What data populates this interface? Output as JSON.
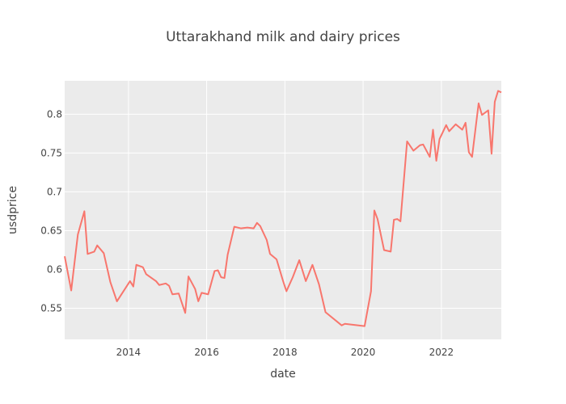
{
  "chart_data": {
    "type": "line",
    "title": "Uttarakhand milk and dairy prices",
    "xlabel": "date",
    "ylabel": "usdprice",
    "xlim": [
      "2012-05-15",
      "2023-07-15"
    ],
    "ylim": [
      0.51,
      0.843
    ],
    "x_ticks": [
      "2014-01-01",
      "2016-01-01",
      "2018-01-01",
      "2020-01-01",
      "2022-01-01"
    ],
    "x_tick_labels": [
      "2014",
      "2016",
      "2018",
      "2020",
      "2022"
    ],
    "y_ticks": [
      0.55,
      0.6,
      0.65,
      0.7,
      0.75,
      0.8
    ],
    "y_tick_labels": [
      "0.55",
      "0.6",
      "0.65",
      "0.7",
      "0.75",
      "0.8"
    ],
    "grid": true,
    "legend": "none",
    "colors": {
      "series": "#f8766d",
      "plot_bg": "#ebebeb",
      "grid": "#ffffff"
    },
    "series": [
      {
        "x": [
          "2012-05-15",
          "2012-07-15",
          "2012-09-15",
          "2012-11-15",
          "2012-12-15",
          "2013-02-15",
          "2013-03-15",
          "2013-05-15",
          "2013-07-15",
          "2013-09-15",
          "2013-11-15",
          "2014-01-15",
          "2014-02-15",
          "2014-03-15",
          "2014-05-15",
          "2014-06-15",
          "2014-08-15",
          "2014-09-15",
          "2014-10-15",
          "2014-12-15",
          "2015-01-15",
          "2015-02-15",
          "2015-04-15",
          "2015-06-15",
          "2015-07-15",
          "2015-09-15",
          "2015-10-15",
          "2015-11-15",
          "2016-01-15",
          "2016-03-15",
          "2016-04-15",
          "2016-05-15",
          "2016-06-15",
          "2016-07-15",
          "2016-09-15",
          "2016-11-15",
          "2017-01-15",
          "2017-03-15",
          "2017-04-15",
          "2017-05-15",
          "2017-07-15",
          "2017-08-15",
          "2017-10-15",
          "2017-12-15",
          "2018-01-15",
          "2018-03-15",
          "2018-05-15",
          "2018-07-15",
          "2018-09-15",
          "2018-11-15",
          "2019-01-15",
          "2019-06-15",
          "2019-07-15",
          "2020-01-15",
          "2020-03-15",
          "2020-04-15",
          "2020-05-15",
          "2020-07-15",
          "2020-09-15",
          "2020-10-15",
          "2020-11-15",
          "2020-12-15",
          "2021-02-15",
          "2021-04-15",
          "2021-06-15",
          "2021-07-15",
          "2021-09-15",
          "2021-10-15",
          "2021-11-15",
          "2021-12-15",
          "2022-02-15",
          "2022-03-15",
          "2022-05-15",
          "2022-07-15",
          "2022-08-15",
          "2022-09-15",
          "2022-10-15",
          "2022-12-15",
          "2023-01-15",
          "2023-03-15",
          "2023-04-15",
          "2023-05-15",
          "2023-06-15",
          "2023-07-15"
        ],
        "y": [
          0.617,
          0.573,
          0.645,
          0.675,
          0.62,
          0.623,
          0.631,
          0.621,
          0.584,
          0.559,
          0.572,
          0.585,
          0.578,
          0.606,
          0.603,
          0.594,
          0.588,
          0.585,
          0.58,
          0.582,
          0.579,
          0.568,
          0.569,
          0.544,
          0.591,
          0.575,
          0.559,
          0.57,
          0.568,
          0.598,
          0.599,
          0.59,
          0.589,
          0.619,
          0.655,
          0.653,
          0.654,
          0.653,
          0.66,
          0.656,
          0.638,
          0.62,
          0.613,
          0.585,
          0.572,
          0.59,
          0.612,
          0.585,
          0.606,
          0.581,
          0.545,
          0.528,
          0.53,
          0.527,
          0.572,
          0.676,
          0.665,
          0.625,
          0.623,
          0.664,
          0.665,
          0.662,
          0.765,
          0.753,
          0.76,
          0.761,
          0.745,
          0.78,
          0.74,
          0.768,
          0.786,
          0.778,
          0.787,
          0.78,
          0.789,
          0.751,
          0.745,
          0.814,
          0.799,
          0.805,
          0.749,
          0.816,
          0.83,
          0.828
        ]
      }
    ]
  }
}
